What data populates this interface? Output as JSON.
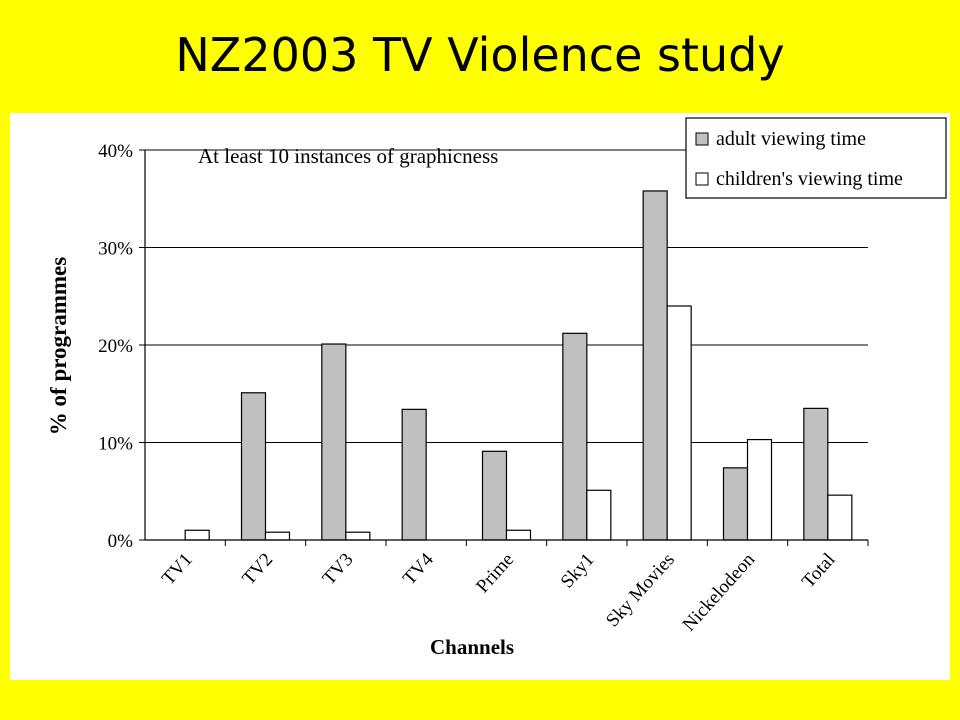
{
  "slide": {
    "title": "NZ2003 TV Violence study"
  },
  "colors": {
    "background": "#ffff00",
    "adult_bar": "#c0c0c0",
    "children_bar": "#ffffff"
  },
  "chart_data": {
    "type": "bar",
    "title": "At least 10 instances of graphicness",
    "xlabel": "Channels",
    "ylabel": "% of programmes",
    "ylim": [
      0,
      40
    ],
    "yticks": [
      "0%",
      "10%",
      "20%",
      "30%",
      "40%"
    ],
    "grid": true,
    "legend_position": "top-right",
    "categories": [
      "TV1",
      "TV2",
      "TV3",
      "TV4",
      "Prime",
      "Sky1",
      "Sky Movies",
      "Nickelodeon",
      "Total"
    ],
    "series": [
      {
        "name": "adult viewing time",
        "color": "#c0c0c0",
        "values": [
          0,
          15.1,
          20.1,
          13.4,
          9.1,
          21.2,
          35.8,
          7.4,
          13.5
        ]
      },
      {
        "name": "children's viewing time",
        "color": "#ffffff",
        "values": [
          1.0,
          0.8,
          0.8,
          0,
          1.0,
          5.1,
          24.0,
          10.3,
          4.6
        ]
      }
    ]
  }
}
